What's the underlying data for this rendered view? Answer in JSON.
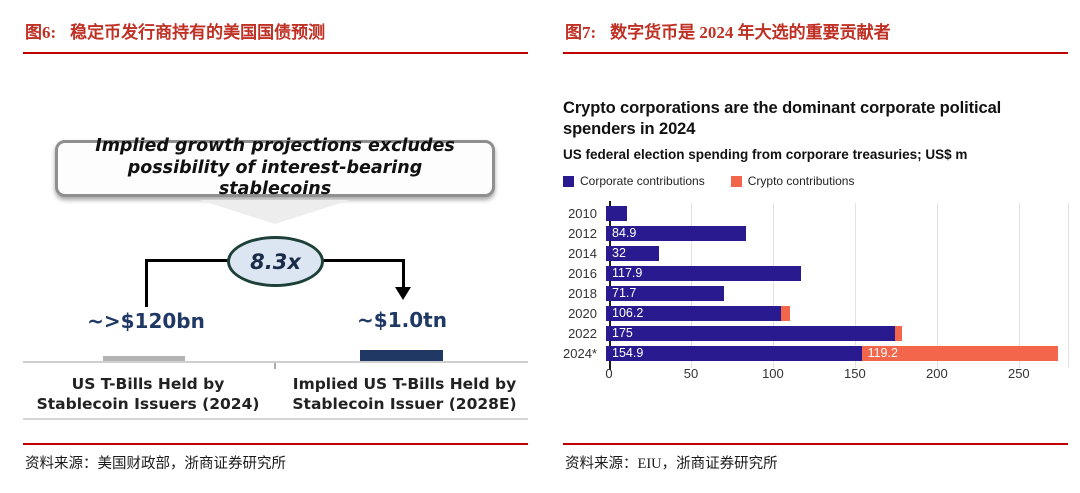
{
  "theme": {
    "accent_red": "#bf3025",
    "rule_red": "#c00000",
    "navy_text": "#1f3864",
    "corporate_blue": "#2a1a8f",
    "crypto_orange": "#f4664c",
    "gray_bar": "#b3b3b3",
    "ellipse_fill": "#dbe6f2",
    "ellipse_border": "#1d4138"
  },
  "figure6": {
    "tag": "图6:",
    "title": "稳定币发行商持有的美国国债预测",
    "callout": "Implied growth projections excludes possibility of interest-bearing stablecoins",
    "multiplier": "8.3x",
    "left_value": "~>$120bn",
    "right_value": "~$1.0tn",
    "left_category": "US T-Bills Held by Stablecoin Issuers (2024)",
    "right_category": "Implied US T-Bills Held by Stablecoin Issuer (2028E)",
    "source": "资料来源：美国财政部，浙商证券研究所"
  },
  "figure7": {
    "tag": "图7:",
    "title": "数字货币是 2024 年大选的重要贡献者",
    "source": "资料来源：EIU，浙商证券研究所"
  },
  "chart_data": {
    "type": "bar",
    "orientation": "horizontal",
    "stacked": true,
    "title": "Crypto corporations are the dominant corporate political spenders in 2024",
    "subtitle": "US federal election spending from corporare treasuries; US$ m",
    "categories": [
      "2010",
      "2012",
      "2014",
      "2016",
      "2018",
      "2020",
      "2022",
      "2024*"
    ],
    "series": [
      {
        "name": "Corporate contributions",
        "color": "#2a1a8f",
        "values": [
          13,
          84.9,
          32,
          117.9,
          71.7,
          106.2,
          175,
          154.9
        ],
        "bar_labels": [
          "",
          "84.9",
          "32",
          "117.9",
          "71.7",
          "106.2",
          "175",
          "154.9"
        ]
      },
      {
        "name": "Crypto contributions",
        "color": "#f4664c",
        "values": [
          0,
          0,
          0,
          0,
          0,
          5.5,
          4.5,
          119.2
        ],
        "bar_labels": [
          "",
          "",
          "",
          "",
          "",
          "",
          "",
          "119.2"
        ]
      }
    ],
    "x_ticks": [
      "0",
      "50",
      "100",
      "150",
      "200",
      "250"
    ],
    "x_tick_values": [
      0,
      50,
      100,
      150,
      200,
      250
    ],
    "x_max": 280,
    "xlabel": "",
    "ylabel": "",
    "grid": true,
    "legend_position": "top"
  }
}
